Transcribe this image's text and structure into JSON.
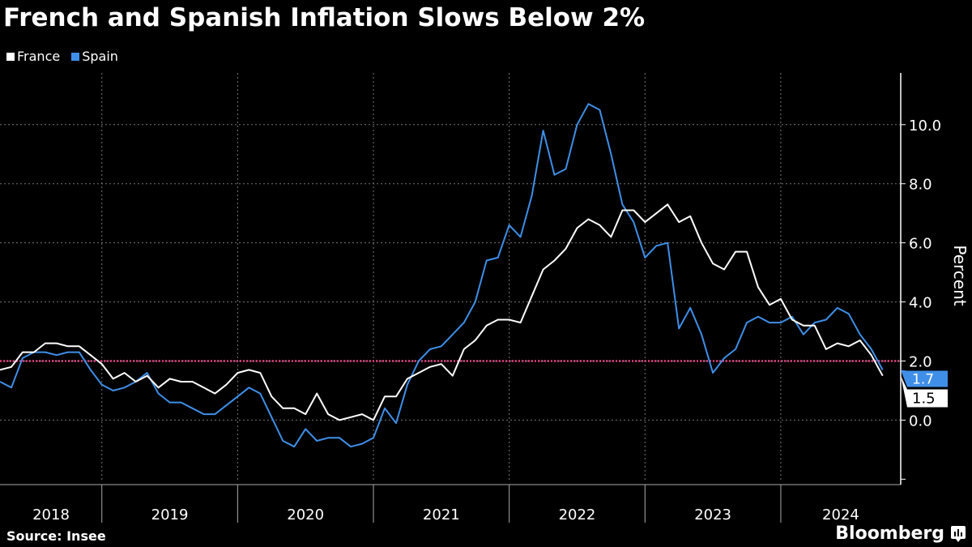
{
  "title": "French and Spanish Inflation Slows Below 2%",
  "source": "Source: Insee",
  "brand": "Bloomberg",
  "chart_data": {
    "type": "line",
    "title": "French and Spanish Inflation Slows Below 2%",
    "ylabel": "Percent",
    "ylim": [
      -2.1,
      11.75
    ],
    "yticks": [
      0,
      2,
      4,
      6,
      8,
      10
    ],
    "ytick_labels": [
      "0.0",
      "2.0",
      "4.0",
      "6.0",
      "8.0",
      "10.0"
    ],
    "x_start": "2018-03",
    "x_end": "2024-09",
    "x_frequency": "monthly",
    "year_labels": [
      "2018",
      "2019",
      "2020",
      "2021",
      "2022",
      "2023",
      "2024"
    ],
    "grid": true,
    "legend": "top-left",
    "reference_line": {
      "value": 2.0,
      "color": "#e2417f"
    },
    "series": [
      {
        "name": "France",
        "color": "#ffffff",
        "end_label": "1.5",
        "values": [
          1.7,
          1.8,
          2.3,
          2.3,
          2.6,
          2.6,
          2.5,
          2.5,
          2.2,
          1.9,
          1.4,
          1.6,
          1.3,
          1.5,
          1.1,
          1.4,
          1.3,
          1.3,
          1.1,
          0.9,
          1.2,
          1.6,
          1.7,
          1.6,
          0.8,
          0.4,
          0.4,
          0.2,
          0.9,
          0.2,
          0.0,
          0.1,
          0.2,
          0.0,
          0.8,
          0.8,
          1.4,
          1.6,
          1.8,
          1.9,
          1.5,
          2.4,
          2.7,
          3.2,
          3.4,
          3.4,
          3.3,
          4.2,
          5.1,
          5.4,
          5.8,
          6.5,
          6.8,
          6.6,
          6.2,
          7.1,
          7.1,
          6.7,
          7.0,
          7.3,
          6.7,
          6.9,
          6.0,
          5.3,
          5.1,
          5.7,
          5.7,
          4.5,
          3.9,
          4.1,
          3.4,
          3.2,
          3.2,
          2.4,
          2.6,
          2.5,
          2.7,
          2.2,
          1.5
        ]
      },
      {
        "name": "Spain",
        "color": "#3f8fe8",
        "end_label": "1.7",
        "values": [
          1.3,
          1.1,
          2.1,
          2.3,
          2.3,
          2.2,
          2.3,
          2.3,
          1.7,
          1.2,
          1.0,
          1.1,
          1.3,
          1.6,
          0.9,
          0.6,
          0.6,
          0.4,
          0.2,
          0.2,
          0.5,
          0.8,
          1.1,
          0.9,
          0.1,
          -0.7,
          -0.9,
          -0.3,
          -0.7,
          -0.6,
          -0.6,
          -0.9,
          -0.8,
          -0.6,
          0.4,
          -0.1,
          1.2,
          2.0,
          2.4,
          2.5,
          2.9,
          3.3,
          4.0,
          5.4,
          5.5,
          6.6,
          6.2,
          7.6,
          9.8,
          8.3,
          8.5,
          10.0,
          10.7,
          10.5,
          9.0,
          7.3,
          6.7,
          5.5,
          5.9,
          6.0,
          3.1,
          3.8,
          2.9,
          1.6,
          2.1,
          2.4,
          3.3,
          3.5,
          3.3,
          3.3,
          3.5,
          2.9,
          3.3,
          3.4,
          3.8,
          3.6,
          2.9,
          2.4,
          1.7
        ]
      }
    ]
  }
}
